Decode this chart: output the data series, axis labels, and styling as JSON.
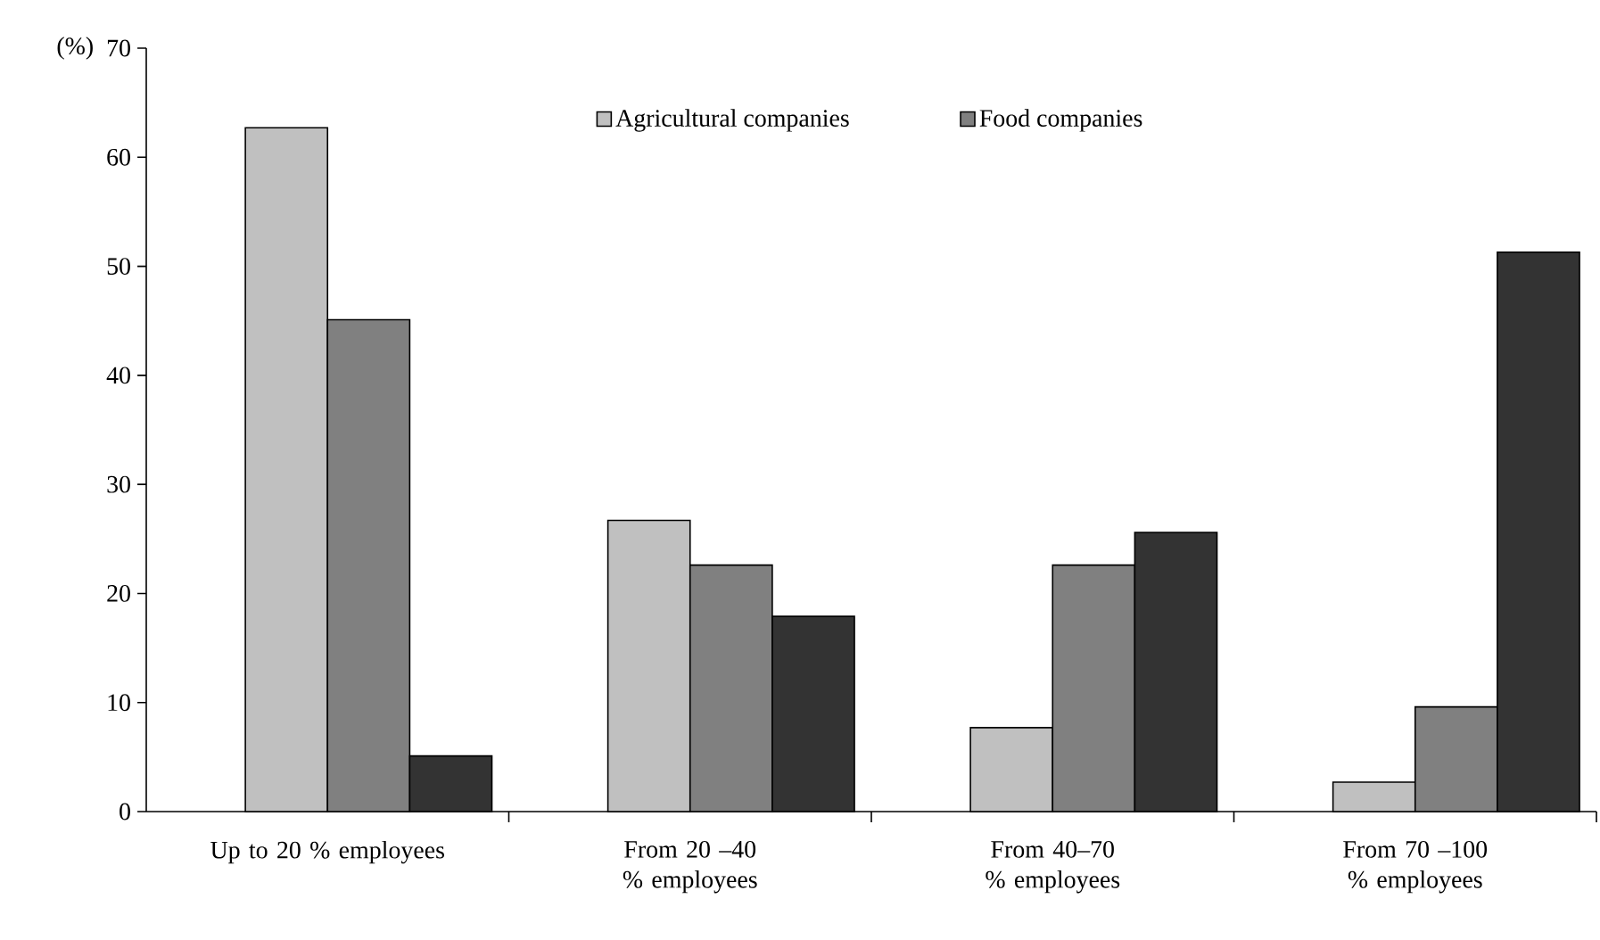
{
  "chart_data": {
    "type": "bar",
    "ylabel": "(%)",
    "categories": [
      "Up to 20 % employees",
      "From 20 –40 % employees",
      "From 40–70 % employees",
      "From 70 –100 % employees"
    ],
    "series": [
      {
        "name": "Agricultural companies",
        "color": "#c0c0c0",
        "values": [
          62.7,
          26.7,
          7.7,
          2.7
        ]
      },
      {
        "name": "Food companies",
        "color": "#808080",
        "values": [
          45.1,
          22.6,
          22.6,
          9.6
        ]
      },
      {
        "color": "#333333",
        "values": [
          5.1,
          17.9,
          25.6,
          51.3
        ]
      }
    ],
    "ylim": [
      0,
      70
    ],
    "yticks": [
      0,
      10,
      20,
      30,
      40,
      50,
      60,
      70
    ],
    "grid": false,
    "legend": "top"
  }
}
